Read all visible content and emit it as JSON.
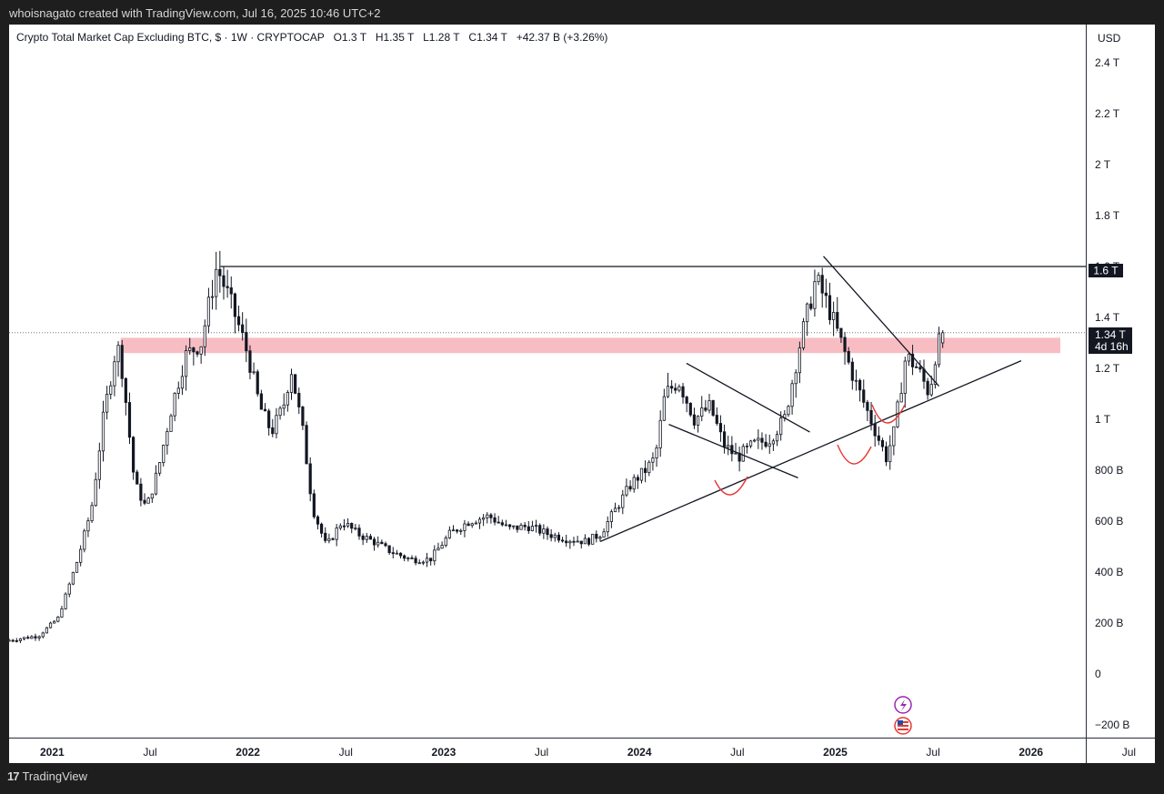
{
  "header": {
    "watermark": "whoisnagato created with TradingView.com, Jul 16, 2025 10:46 UTC+2"
  },
  "legend": {
    "symbol": "Crypto Total Market Cap Excluding BTC, $ · 1W · CRYPTOCAP",
    "open": "O1.3 T",
    "high": "H1.35 T",
    "low": "L1.28 T",
    "close": "C1.34 T",
    "change": "+42.37 B (+3.26%)"
  },
  "axis": {
    "currency": "USD",
    "y_ticks": [
      "2.4 T",
      "2.2 T",
      "2 T",
      "1.8 T",
      "1.6 T",
      "1.4 T",
      "1.2 T",
      "1 T",
      "800 B",
      "600 B",
      "400 B",
      "200 B",
      "0",
      "−200 B"
    ],
    "x_ticks": [
      "2021",
      "Jul",
      "2022",
      "Jul",
      "2023",
      "Jul",
      "2024",
      "Jul",
      "2025",
      "Jul",
      "2026",
      "Jul"
    ],
    "price_label": "1.34 T",
    "countdown": "4d 16h",
    "level_label": "1.6 T"
  },
  "footer": {
    "brand": "TradingView"
  },
  "colors": {
    "up": "#2e2e2e",
    "down": "#000000",
    "zone": "#f8b9c0",
    "curve": "#e53935",
    "lightning_icon": "#9c27b0",
    "us_flag_icon": "#e53935"
  },
  "chart_data": {
    "type": "candlestick",
    "title": "Crypto Total Market Cap Excluding BTC, $ · 1W · CRYPTOCAP",
    "x_unit": "year",
    "y_unit": "T USD",
    "ylim": [
      -0.25,
      2.55
    ],
    "xlim": [
      2020.78,
      2026.28
    ],
    "grid": false,
    "last_ohlc": {
      "open": 1.3,
      "high": 1.35,
      "low": 1.28,
      "close": 1.34
    },
    "price_path": [
      [
        2020.78,
        0.13
      ],
      [
        2020.95,
        0.15
      ],
      [
        2021.05,
        0.22
      ],
      [
        2021.15,
        0.45
      ],
      [
        2021.22,
        0.65
      ],
      [
        2021.28,
        1.0
      ],
      [
        2021.35,
        1.3
      ],
      [
        2021.38,
        1.18
      ],
      [
        2021.44,
        0.75
      ],
      [
        2021.5,
        0.65
      ],
      [
        2021.56,
        0.8
      ],
      [
        2021.63,
        1.05
      ],
      [
        2021.7,
        1.25
      ],
      [
        2021.78,
        1.3
      ],
      [
        2021.86,
        1.6
      ],
      [
        2021.92,
        1.48
      ],
      [
        2021.98,
        1.35
      ],
      [
        2022.02,
        1.25
      ],
      [
        2022.08,
        1.05
      ],
      [
        2022.14,
        0.95
      ],
      [
        2022.2,
        1.05
      ],
      [
        2022.24,
        1.2
      ],
      [
        2022.3,
        0.95
      ],
      [
        2022.35,
        0.65
      ],
      [
        2022.42,
        0.5
      ],
      [
        2022.5,
        0.6
      ],
      [
        2022.58,
        0.55
      ],
      [
        2022.66,
        0.52
      ],
      [
        2022.75,
        0.48
      ],
      [
        2022.85,
        0.45
      ],
      [
        2022.95,
        0.45
      ],
      [
        2023.05,
        0.55
      ],
      [
        2023.15,
        0.6
      ],
      [
        2023.25,
        0.62
      ],
      [
        2023.35,
        0.57
      ],
      [
        2023.45,
        0.58
      ],
      [
        2023.55,
        0.55
      ],
      [
        2023.65,
        0.53
      ],
      [
        2023.75,
        0.52
      ],
      [
        2023.82,
        0.55
      ],
      [
        2023.9,
        0.65
      ],
      [
        2023.98,
        0.75
      ],
      [
        2024.05,
        0.8
      ],
      [
        2024.1,
        0.85
      ],
      [
        2024.15,
        1.1
      ],
      [
        2024.22,
        1.15
      ],
      [
        2024.3,
        1.0
      ],
      [
        2024.38,
        1.05
      ],
      [
        2024.45,
        0.9
      ],
      [
        2024.52,
        0.85
      ],
      [
        2024.6,
        0.9
      ],
      [
        2024.68,
        0.92
      ],
      [
        2024.76,
        1.0
      ],
      [
        2024.84,
        1.3
      ],
      [
        2024.92,
        1.55
      ],
      [
        2024.98,
        1.45
      ],
      [
        2025.05,
        1.3
      ],
      [
        2025.12,
        1.15
      ],
      [
        2025.2,
        1.0
      ],
      [
        2025.28,
        0.85
      ],
      [
        2025.32,
        0.95
      ],
      [
        2025.38,
        1.25
      ],
      [
        2025.44,
        1.2
      ],
      [
        2025.5,
        1.1
      ],
      [
        2025.54,
        1.3
      ]
    ],
    "annotations": {
      "resistance_level": 1.6,
      "supply_zone": [
        1.26,
        1.32
      ],
      "current_price": 1.34,
      "countdown": "4d 16h",
      "ascending_trendline": [
        [
          2023.8,
          0.52
        ],
        [
          2025.95,
          1.23
        ]
      ],
      "descending_trendline": [
        [
          2024.94,
          1.64
        ],
        [
          2025.53,
          1.13
        ]
      ],
      "channel_upper": [
        [
          2024.24,
          1.22
        ],
        [
          2024.87,
          0.95
        ]
      ],
      "channel_lower": [
        [
          2024.15,
          0.98
        ],
        [
          2024.81,
          0.77
        ]
      ]
    }
  }
}
